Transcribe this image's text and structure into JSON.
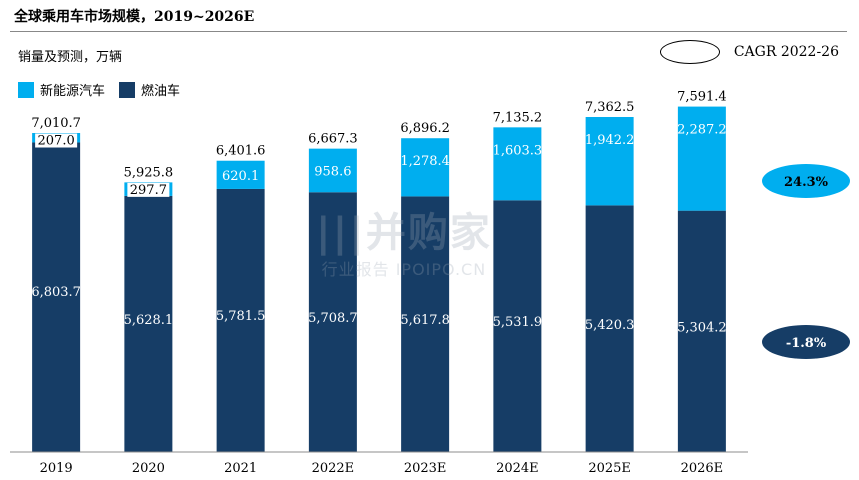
{
  "header": {
    "title": "全球乘用车市场规模，2019~2026E",
    "unit_note": "销量及预测，万辆",
    "cagr_label": "CAGR 2022-26"
  },
  "watermark": {
    "line1": "|||并购家",
    "line2": "行业报告 IPOIPO.CN"
  },
  "colors": {
    "nev": "#00aeef",
    "ice": "#163d66",
    "nev_badge": "#00aeef",
    "ice_badge": "#163d66"
  },
  "chart_data": {
    "type": "bar",
    "stacked": true,
    "categories": [
      "2019",
      "2020",
      "2021",
      "2022E",
      "2023E",
      "2024E",
      "2025E",
      "2026E"
    ],
    "series": [
      {
        "name": "燃油车",
        "values": [
          6803.7,
          5628.1,
          5781.5,
          5708.7,
          5617.8,
          5531.9,
          5420.3,
          5304.2
        ],
        "labels": [
          "6,803.7",
          "5,628.1",
          "5,781.5",
          "5,708.7",
          "5,617.8",
          "5,531.9",
          "5,420.3",
          "5,304.2"
        ]
      },
      {
        "name": "新能源汽车",
        "values": [
          207.0,
          297.7,
          620.1,
          958.6,
          1278.4,
          1603.3,
          1942.2,
          2287.2
        ],
        "labels": [
          "207.0",
          "297.7",
          "620.1",
          "958.6",
          "1,278.4",
          "1,603.3",
          "1,942.2",
          "2,287.2"
        ]
      }
    ],
    "totals": [
      7010.7,
      5925.8,
      6401.6,
      6667.3,
      6896.2,
      7135.2,
      7362.5,
      7591.4
    ],
    "total_labels": [
      "7,010.7",
      "5,925.8",
      "6,401.6",
      "6,667.3",
      "6,896.2",
      "7,135.2",
      "7,362.5",
      "7,591.4"
    ],
    "cagr": [
      {
        "series": "新能源汽车",
        "value": "24.3%"
      },
      {
        "series": "燃油车",
        "value": "-1.8%"
      }
    ],
    "ylim": [
      0,
      8000
    ],
    "grid": false,
    "legend_position": "top-left"
  }
}
